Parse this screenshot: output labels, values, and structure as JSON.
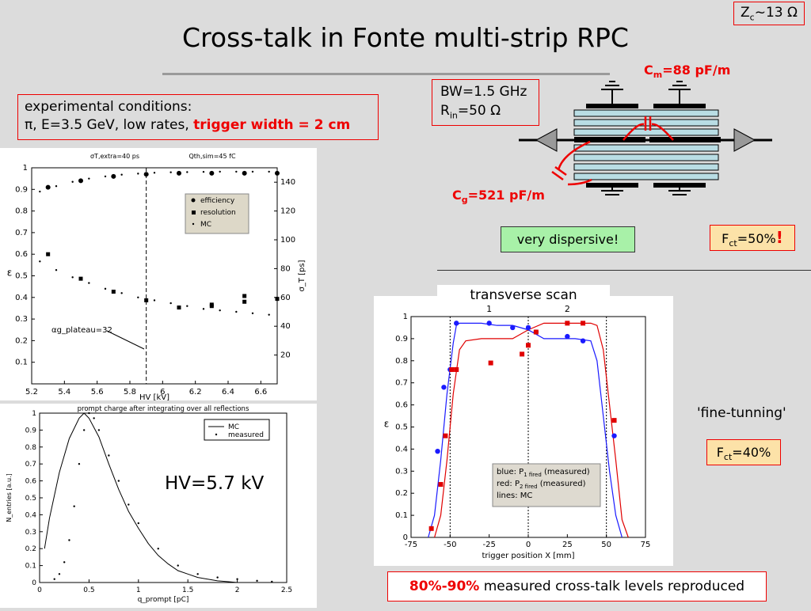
{
  "title": "Cross-talk in Fonte multi-strip RPC",
  "zc_label": {
    "base": "Z",
    "sub": "c",
    "rest": "~13 Ω"
  },
  "conditions": {
    "line1": "experimental conditions:",
    "line2_prefix": "π, E=3.5 GeV, low rates, ",
    "line2_highlight": "trigger width = 2 cm"
  },
  "circuit": {
    "bw": "BW=1.5 GHz",
    "rin_base": "R",
    "rin_sub": "in",
    "rin_rest": "=50 Ω",
    "cm_base": "C",
    "cm_sub": "m",
    "cm_rest": "=88 pF/m",
    "cg_base": "C",
    "cg_sub": "g",
    "cg_rest": "=521 pF/m"
  },
  "very_dispersive": "very dispersive!",
  "fct1": {
    "base": "F",
    "sub": "ct",
    "rest": "=50%",
    "mark": "!"
  },
  "fct2": {
    "base": "F",
    "sub": "ct",
    "rest": "=40%"
  },
  "fine_tuning": "'fine-tunning'",
  "transverse_scan": "transverse scan",
  "hv_label": "HV=5.7 kV",
  "result": {
    "highlight": "80%-90%",
    "rest": " measured cross-talk levels reproduced"
  },
  "chart_data": [
    {
      "type": "scatter",
      "xlabel": "HV [kV]",
      "ylabel_left": "ε",
      "ylabel_right": "σ_T [ps]",
      "xlim": [
        5.2,
        6.7
      ],
      "ylim_left": [
        0,
        1
      ],
      "ylim_right": [
        0,
        150
      ],
      "x_ticks": [
        "5.2",
        "5.4",
        "5.6",
        "5.8",
        "6",
        "6.2",
        "6.4",
        "6.6"
      ],
      "y_ticks_left": [
        "0.1",
        "0.2",
        "0.3",
        "0.4",
        "0.5",
        "0.6",
        "0.7",
        "0.8",
        "0.9",
        "1"
      ],
      "y_ticks_right": [
        "20",
        "40",
        "60",
        "80",
        "100",
        "120",
        "140"
      ],
      "top_annotations": [
        "σT,extra=40 ps",
        "Qth,sim=45 fC"
      ],
      "plateau_annotation": "αg_plateau=32",
      "legend": [
        "efficiency",
        "resolution",
        "MC"
      ],
      "series": [
        {
          "name": "efficiency",
          "marker": "circle",
          "x": [
            5.3,
            5.5,
            5.7,
            5.9,
            6.1,
            6.3,
            6.5,
            6.7
          ],
          "y": [
            0.91,
            0.94,
            0.96,
            0.97,
            0.975,
            0.975,
            0.975,
            0.975
          ]
        },
        {
          "name": "resolution",
          "marker": "square",
          "axis": "right",
          "x": [
            5.3,
            5.5,
            5.7,
            5.9,
            6.1,
            6.3,
            6.3,
            6.5,
            6.5,
            6.7
          ],
          "y": [
            90,
            73,
            64,
            58,
            53,
            55,
            54,
            57,
            61,
            59
          ]
        },
        {
          "name": "MC efficiency",
          "marker": "dot",
          "x": [
            5.25,
            5.35,
            5.45,
            5.55,
            5.65,
            5.75,
            5.85,
            5.95,
            6.05,
            6.15,
            6.25,
            6.35,
            6.45,
            6.55,
            6.65
          ],
          "y": [
            0.89,
            0.915,
            0.935,
            0.95,
            0.96,
            0.968,
            0.973,
            0.977,
            0.979,
            0.98,
            0.981,
            0.982,
            0.982,
            0.982,
            0.982
          ]
        },
        {
          "name": "MC resolution",
          "marker": "dot",
          "axis": "right",
          "x": [
            5.25,
            5.35,
            5.45,
            5.55,
            5.65,
            5.75,
            5.85,
            5.95,
            6.05,
            6.15,
            6.25,
            6.35,
            6.45,
            6.55,
            6.65
          ],
          "y": [
            85,
            79,
            74,
            70,
            66,
            63,
            60,
            58,
            56,
            54,
            52,
            51,
            50,
            49,
            48
          ]
        }
      ],
      "vline_x": 5.9
    },
    {
      "type": "line",
      "title": "prompt charge after integrating over all reflections",
      "xlabel": "q_prompt [pC]",
      "ylabel": "N_entries [a.u.]",
      "xlim": [
        0,
        2.5
      ],
      "ylim": [
        0,
        1
      ],
      "x_ticks": [
        "0",
        "0.5",
        "1",
        "1.5",
        "2",
        "2.5"
      ],
      "y_ticks": [
        "0",
        "0.1",
        "0.2",
        "0.3",
        "0.4",
        "0.5",
        "0.6",
        "0.7",
        "0.8",
        "0.9",
        "1"
      ],
      "legend": [
        "MC",
        "measured"
      ],
      "series": [
        {
          "name": "MC",
          "x": [
            0.05,
            0.1,
            0.2,
            0.3,
            0.4,
            0.45,
            0.5,
            0.6,
            0.7,
            0.8,
            0.9,
            1.0,
            1.1,
            1.2,
            1.3,
            1.4,
            1.5,
            1.6,
            1.7,
            1.8,
            1.9,
            2.0
          ],
          "y": [
            0.2,
            0.38,
            0.65,
            0.85,
            0.97,
            1.0,
            0.97,
            0.86,
            0.7,
            0.55,
            0.42,
            0.32,
            0.23,
            0.16,
            0.11,
            0.07,
            0.05,
            0.03,
            0.02,
            0.01,
            0.005,
            0.0
          ]
        },
        {
          "name": "measured",
          "x": [
            0.15,
            0.2,
            0.25,
            0.3,
            0.35,
            0.4,
            0.45,
            0.5,
            0.55,
            0.6,
            0.7,
            0.8,
            0.9,
            1.0,
            1.2,
            1.4,
            1.6,
            1.8,
            2.0,
            2.2,
            2.35
          ],
          "y": [
            0.02,
            0.05,
            0.12,
            0.25,
            0.45,
            0.7,
            0.9,
            1.0,
            0.97,
            0.9,
            0.75,
            0.6,
            0.46,
            0.35,
            0.2,
            0.1,
            0.05,
            0.03,
            0.02,
            0.01,
            0.005
          ]
        }
      ]
    },
    {
      "type": "line",
      "xlabel": "trigger position X [mm]",
      "ylabel": "ε",
      "xlim": [
        -75,
        75
      ],
      "ylim": [
        0,
        1
      ],
      "x_ticks": [
        "-75",
        "-50",
        "-25",
        "0",
        "25",
        "50",
        "75"
      ],
      "y_ticks": [
        "0",
        "0.1",
        "0.2",
        "0.3",
        "0.4",
        "0.5",
        "0.6",
        "0.7",
        "0.8",
        "0.9",
        "1"
      ],
      "strip_labels": [
        "1",
        "2"
      ],
      "legend_lines": [
        "blue: P1 fired (measured)",
        "red: P2 fired (measured)",
        "lines: MC"
      ],
      "legend_parts": [
        {
          "pre": "blue: P",
          "sub": "1 fired",
          "post": " (measured)"
        },
        {
          "pre": "red: P",
          "sub": "2 fired",
          "post": " (measured)"
        },
        {
          "pre": "lines: MC",
          "sub": "",
          "post": ""
        }
      ],
      "series": [
        {
          "name": "P1 fired MC",
          "color": "#1a1aff",
          "x": [
            -64,
            -60,
            -56,
            -52,
            -48,
            -46,
            -44,
            -40,
            -30,
            -20,
            -10,
            0,
            10,
            20,
            30,
            40,
            44,
            48,
            52,
            56,
            60
          ],
          "y": [
            0.0,
            0.1,
            0.35,
            0.65,
            0.88,
            0.96,
            0.97,
            0.97,
            0.97,
            0.96,
            0.96,
            0.94,
            0.9,
            0.9,
            0.9,
            0.89,
            0.8,
            0.55,
            0.3,
            0.1,
            0.0
          ]
        },
        {
          "name": "P2 fired MC",
          "color": "#e00000",
          "x": [
            -60,
            -56,
            -52,
            -48,
            -44,
            -40,
            -30,
            -20,
            -10,
            0,
            10,
            20,
            30,
            40,
            44,
            48,
            52,
            56,
            60,
            64
          ],
          "y": [
            0.0,
            0.1,
            0.35,
            0.65,
            0.85,
            0.89,
            0.9,
            0.9,
            0.9,
            0.94,
            0.97,
            0.97,
            0.97,
            0.97,
            0.96,
            0.85,
            0.6,
            0.35,
            0.08,
            0.0
          ]
        },
        {
          "name": "P1 fired measured",
          "color": "#1a1aff",
          "marker": "circle",
          "x": [
            -58,
            -54,
            -50,
            -46,
            -25,
            -10,
            0,
            5,
            25,
            35,
            55
          ],
          "y": [
            0.39,
            0.68,
            0.76,
            0.97,
            0.97,
            0.95,
            0.95,
            0.93,
            0.91,
            0.89,
            0.46
          ]
        },
        {
          "name": "P2 fired measured",
          "color": "#e00000",
          "marker": "square",
          "x": [
            -62,
            -56,
            -53,
            -49,
            -46,
            -24,
            -4,
            0,
            5,
            25,
            35,
            55
          ],
          "y": [
            0.04,
            0.24,
            0.46,
            0.76,
            0.76,
            0.79,
            0.83,
            0.87,
            0.93,
            0.97,
            0.97,
            0.53
          ]
        }
      ]
    }
  ]
}
